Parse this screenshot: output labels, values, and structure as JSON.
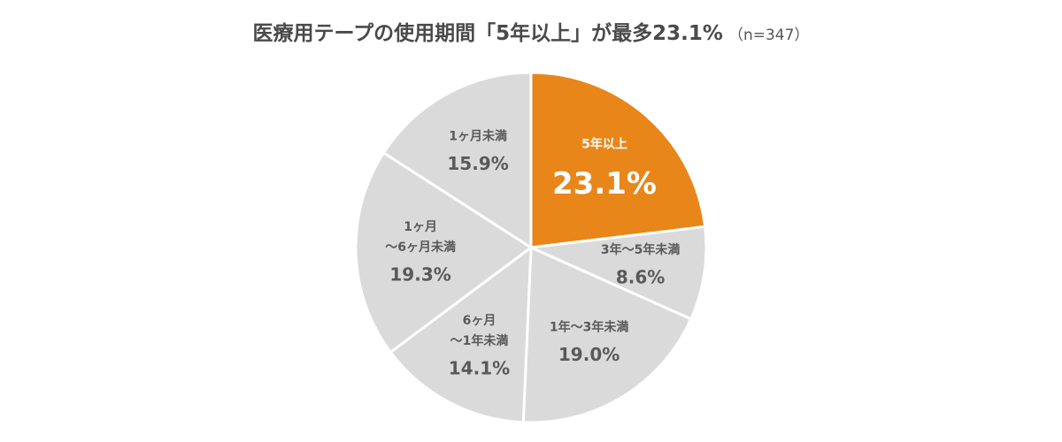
{
  "title": "医療用テープの使用期間「5年以上」が最多23.1%",
  "subtitle": "（n=347）",
  "colors": {
    "highlight": "#E8861A",
    "default": "#DADADA",
    "separator": "#FFFFFF",
    "label_dark": "#595959",
    "label_light": "#FFFFFF"
  },
  "chart_data": {
    "type": "pie",
    "title": "医療用テープの使用期間「5年以上」が最多23.1%",
    "subtitle": "（n=347）",
    "unit": "%",
    "start": "12 o'clock, clockwise",
    "slices": [
      {
        "label_lines": [
          "5年以上"
        ],
        "value": 23.1,
        "value_label": "23.1%",
        "highlight": true
      },
      {
        "label_lines": [
          "3年～5年未満"
        ],
        "value": 8.6,
        "value_label": "8.6%",
        "highlight": false
      },
      {
        "label_lines": [
          "1年～3年未満"
        ],
        "value": 19.0,
        "value_label": "19.0%",
        "highlight": false
      },
      {
        "label_lines": [
          "6ヶ月",
          "～1年未満"
        ],
        "value": 14.1,
        "value_label": "14.1%",
        "highlight": false
      },
      {
        "label_lines": [
          "1ヶ月",
          "～6ヶ月未満"
        ],
        "value": 19.3,
        "value_label": "19.3%",
        "highlight": false
      },
      {
        "label_lines": [
          "1ヶ月未満"
        ],
        "value": 15.9,
        "value_label": "15.9%",
        "highlight": false
      }
    ]
  }
}
